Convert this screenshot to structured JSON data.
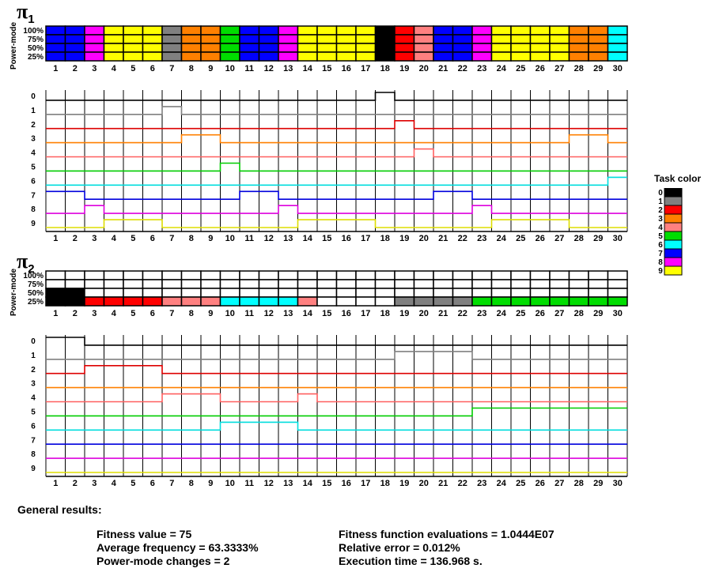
{
  "pi1_label": {
    "symbol": "π",
    "sub": "1"
  },
  "pi2_label": {
    "symbol": "π",
    "sub": "2"
  },
  "power_mode_title": "Power-mode",
  "power_mode_levels": [
    "100%",
    "75%",
    "50%",
    "25%"
  ],
  "task_levels": [
    "0",
    "1",
    "2",
    "3",
    "4",
    "5",
    "6",
    "7",
    "8",
    "9"
  ],
  "legend": {
    "title": "Task color",
    "items": [
      {
        "label": "0",
        "color": "#000000"
      },
      {
        "label": "1",
        "color": "#808080"
      },
      {
        "label": "2",
        "color": "#ff0000"
      },
      {
        "label": "3",
        "color": "#ff8000"
      },
      {
        "label": "4",
        "color": "#ff8080"
      },
      {
        "label": "5",
        "color": "#00dd00"
      },
      {
        "label": "6",
        "color": "#00ffff"
      },
      {
        "label": "7",
        "color": "#0000ff"
      },
      {
        "label": "8",
        "color": "#ff00ff"
      },
      {
        "label": "9",
        "color": "#ffff00"
      }
    ]
  },
  "results": {
    "heading": "General results:",
    "fitness": "Fitness value = 75",
    "avg_freq": "Average frequency = 63.3333%",
    "pm_changes": "Power-mode changes = 2",
    "evaluations": "Fitness function evaluations = 1.0444E07",
    "rel_error": "Relative error = 0.012%",
    "exec_time": "Execution time = 136.968 s."
  },
  "chart_data": [
    {
      "type": "heatmap",
      "name": "pi1-power-mode",
      "x_ticks": [
        1,
        2,
        3,
        4,
        5,
        6,
        7,
        8,
        9,
        10,
        11,
        12,
        13,
        14,
        15,
        16,
        17,
        18,
        19,
        20,
        21,
        22,
        23,
        24,
        25,
        26,
        27,
        28,
        29,
        30
      ],
      "y_ticks": [
        "100%",
        "75%",
        "50%",
        "25%"
      ],
      "task_per_slot": [
        7,
        7,
        8,
        9,
        9,
        9,
        1,
        3,
        3,
        5,
        7,
        7,
        8,
        9,
        9,
        9,
        9,
        0,
        2,
        4,
        7,
        7,
        8,
        9,
        9,
        9,
        9,
        3,
        3,
        6
      ],
      "levels_filled": [
        4,
        4,
        4,
        4,
        4,
        4,
        4,
        4,
        4,
        4,
        4,
        4,
        4,
        4,
        4,
        4,
        4,
        4,
        4,
        4,
        4,
        4,
        4,
        4,
        4,
        4,
        4,
        4,
        4,
        4
      ]
    },
    {
      "type": "line",
      "name": "pi1-task-schedule",
      "x_ticks": [
        1,
        2,
        3,
        4,
        5,
        6,
        7,
        8,
        9,
        10,
        11,
        12,
        13,
        14,
        15,
        16,
        17,
        18,
        19,
        20,
        21,
        22,
        23,
        24,
        25,
        26,
        27,
        28,
        29,
        30
      ],
      "y_ticks": [
        "0",
        "1",
        "2",
        "3",
        "4",
        "5",
        "6",
        "7",
        "8",
        "9"
      ],
      "task_per_slot": [
        7,
        7,
        8,
        9,
        9,
        9,
        1,
        3,
        3,
        5,
        7,
        7,
        8,
        9,
        9,
        9,
        9,
        0,
        2,
        4,
        7,
        7,
        8,
        9,
        9,
        9,
        9,
        3,
        3,
        6
      ]
    },
    {
      "type": "heatmap",
      "name": "pi2-power-mode",
      "x_ticks": [
        1,
        2,
        3,
        4,
        5,
        6,
        7,
        8,
        9,
        10,
        11,
        12,
        13,
        14,
        15,
        16,
        17,
        18,
        19,
        20,
        21,
        22,
        23,
        24,
        25,
        26,
        27,
        28,
        29,
        30
      ],
      "y_ticks": [
        "100%",
        "75%",
        "50%",
        "25%"
      ],
      "task_per_slot": [
        0,
        0,
        2,
        2,
        2,
        2,
        4,
        4,
        4,
        6,
        6,
        6,
        6,
        4,
        null,
        null,
        null,
        null,
        1,
        1,
        1,
        1,
        5,
        5,
        5,
        5,
        5,
        5,
        5,
        5
      ],
      "levels_filled": [
        2,
        2,
        1,
        1,
        1,
        1,
        1,
        1,
        1,
        1,
        1,
        1,
        1,
        1,
        0,
        0,
        0,
        0,
        1,
        1,
        1,
        1,
        1,
        1,
        1,
        1,
        1,
        1,
        1,
        1
      ]
    },
    {
      "type": "line",
      "name": "pi2-task-schedule",
      "x_ticks": [
        1,
        2,
        3,
        4,
        5,
        6,
        7,
        8,
        9,
        10,
        11,
        12,
        13,
        14,
        15,
        16,
        17,
        18,
        19,
        20,
        21,
        22,
        23,
        24,
        25,
        26,
        27,
        28,
        29,
        30
      ],
      "y_ticks": [
        "0",
        "1",
        "2",
        "3",
        "4",
        "5",
        "6",
        "7",
        "8",
        "9"
      ],
      "task_per_slot": [
        0,
        0,
        2,
        2,
        2,
        2,
        4,
        4,
        4,
        6,
        6,
        6,
        6,
        4,
        null,
        null,
        null,
        null,
        1,
        1,
        1,
        1,
        5,
        5,
        5,
        5,
        5,
        5,
        5,
        5
      ]
    }
  ]
}
